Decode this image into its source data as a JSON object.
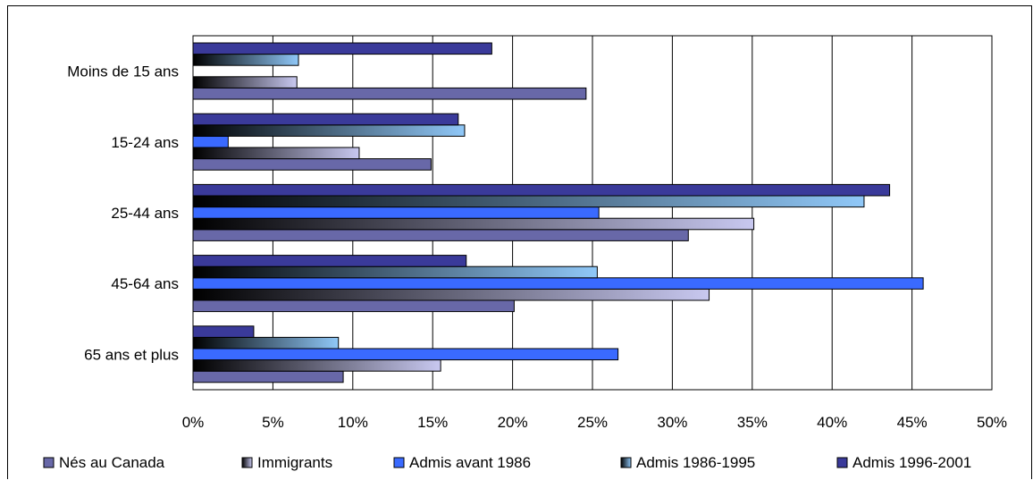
{
  "chart_data": {
    "type": "bar",
    "orientation": "horizontal",
    "categories": [
      "Moins de 15 ans",
      "15-24 ans",
      "25-44 ans",
      "45-64 ans",
      "65 ans et plus"
    ],
    "series": [
      {
        "name": "Nés au Canada",
        "values": [
          24.6,
          14.9,
          31.0,
          20.1,
          9.4
        ],
        "color": "#6868a8",
        "style": "solid"
      },
      {
        "name": "Immigrants",
        "values": [
          6.5,
          10.4,
          35.1,
          32.3,
          15.5
        ],
        "color": "#c8c8f0",
        "style": "gradient-dark-to-light"
      },
      {
        "name": "Admis avant 1986",
        "values": [
          0,
          2.2,
          25.4,
          45.7,
          26.6
        ],
        "color": "#3a6aff",
        "style": "solid"
      },
      {
        "name": "Admis 1986-1995",
        "values": [
          6.6,
          17.0,
          42.0,
          25.3,
          9.1
        ],
        "color": "#90c8f8",
        "style": "gradient-dark-to-light"
      },
      {
        "name": "Admis 1996-2001",
        "values": [
          18.7,
          16.6,
          43.6,
          17.1,
          3.8
        ],
        "color": "#3a3a9a",
        "style": "solid"
      }
    ],
    "x_ticks": [
      "0%",
      "5%",
      "10%",
      "15%",
      "20%",
      "25%",
      "30%",
      "35%",
      "40%",
      "45%",
      "50%"
    ],
    "xlim": [
      0,
      50
    ],
    "grid": "vertical",
    "legend_position": "bottom",
    "title": "",
    "xlabel": "",
    "ylabel": ""
  }
}
